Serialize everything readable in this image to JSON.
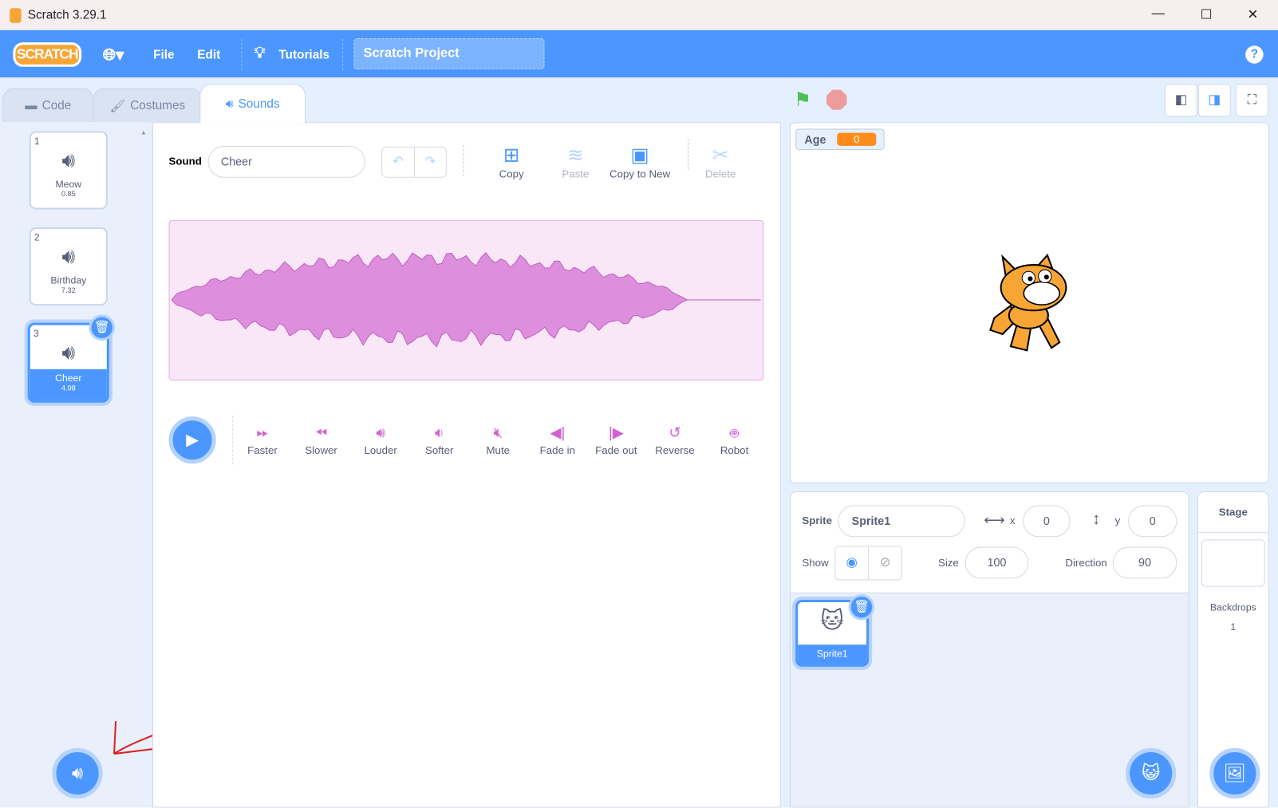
{
  "window": {
    "title": "Scratch 3.29.1",
    "minimize": "—",
    "maximize": "☐",
    "close": "✕"
  },
  "menu": {
    "logo": "SCRATCH",
    "language_icon": "globe-icon",
    "file": "File",
    "edit": "Edit",
    "tutorials": "Tutorials",
    "project_title": "Scratch Project",
    "help": "?"
  },
  "tabs": [
    {
      "label": "Code"
    },
    {
      "label": "Costumes"
    },
    {
      "label": "Sounds"
    }
  ],
  "sounds": [
    {
      "num": "1",
      "name": "Meow",
      "duration": "0.85"
    },
    {
      "num": "2",
      "name": "Birthday",
      "duration": "7.32"
    },
    {
      "num": "3",
      "name": "Cheer",
      "duration": "4.98",
      "selected": true
    }
  ],
  "editor": {
    "sound_label": "Sound",
    "sound_name": "Cheer",
    "copy": "Copy",
    "paste": "Paste",
    "copy_to_new": "Copy to New",
    "delete": "Delete",
    "waveform_color": "#cf63cf",
    "effects": [
      "Faster",
      "Slower",
      "Louder",
      "Softer",
      "Mute",
      "Fade in",
      "Fade out",
      "Reverse",
      "Robot"
    ]
  },
  "stage": {
    "monitor_label": "Age",
    "monitor_value": "0"
  },
  "sprite": {
    "label": "Sprite",
    "name": "Sprite1",
    "x_label": "x",
    "x": "0",
    "y_label": "y",
    "y": "0",
    "show_label": "Show",
    "size_label": "Size",
    "size": "100",
    "direction_label": "Direction",
    "direction": "90",
    "tiles": [
      {
        "name": "Sprite1"
      }
    ]
  },
  "stage_panel": {
    "title": "Stage",
    "backdrops_label": "Backdrops",
    "backdrops_count": "1"
  },
  "colors": {
    "accent": "#4c97ff",
    "menubar": "#4c97ff",
    "monitor": "#ff8c1a",
    "annotation": "#e02020"
  }
}
